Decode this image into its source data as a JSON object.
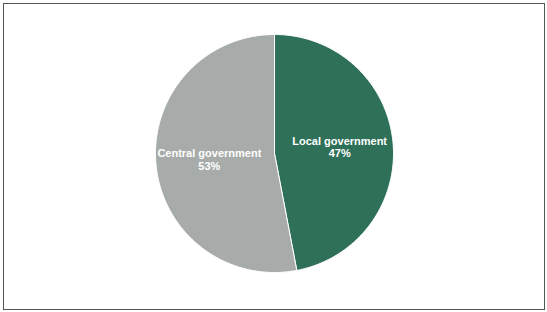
{
  "chart_data": {
    "type": "pie",
    "categories": [
      "Local government",
      "Central government"
    ],
    "values": [
      47,
      53
    ],
    "value_labels": [
      "47%",
      "53%"
    ],
    "colors": [
      "#2e7158",
      "#a7aba9"
    ],
    "data_labels": true
  }
}
